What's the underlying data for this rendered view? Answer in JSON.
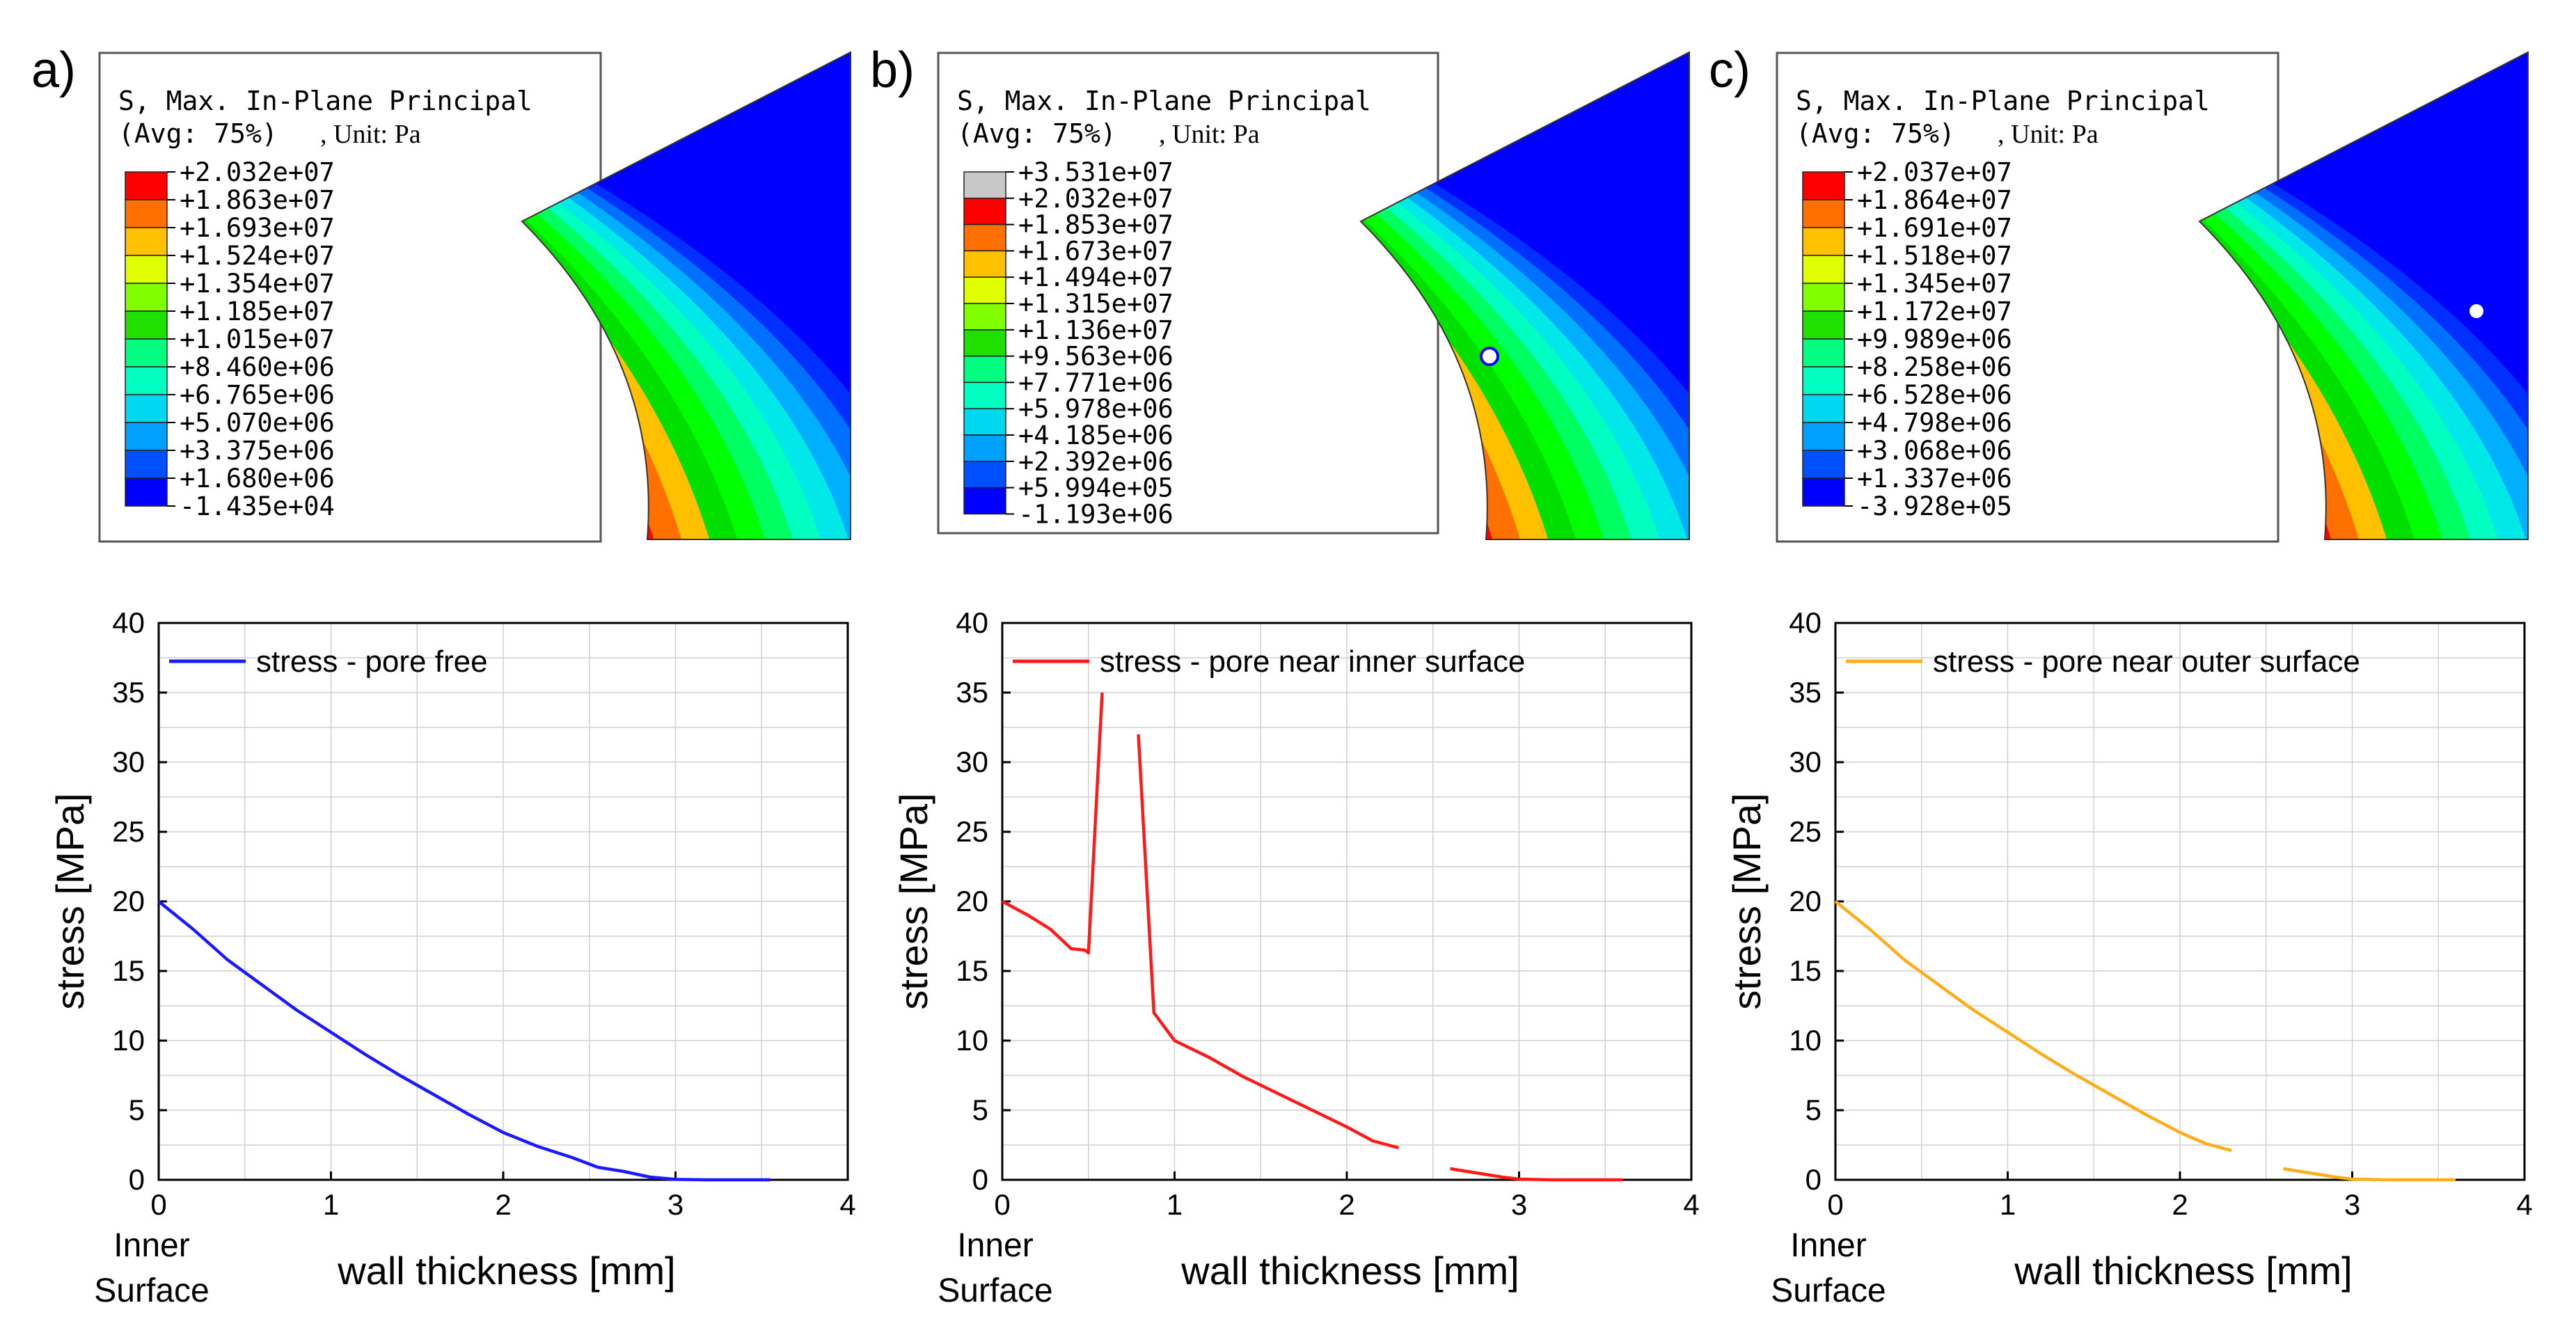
{
  "colors": {
    "legend_scale": [
      "#0000ff",
      "#0050ff",
      "#00a0ff",
      "#00d8f0",
      "#00ffc0",
      "#00ff80",
      "#00ff30",
      "#20e000",
      "#80ff00",
      "#e0ff00",
      "#ffc000",
      "#ff7000",
      "#ff0000"
    ],
    "series": [
      "#1a1aff",
      "#ff1a1a",
      "#ffae1a"
    ],
    "grid": "#d0d0d0"
  },
  "panels": [
    {
      "letter": "a)",
      "legend": {
        "title_line1": "S, Max. In-Plane Principal",
        "title_line2": "(Avg: 75%)",
        "unit": ", Unit: Pa",
        "values": [
          "+2.032e+07",
          "+1.863e+07",
          "+1.693e+07",
          "+1.524e+07",
          "+1.354e+07",
          "+1.185e+07",
          "+1.015e+07",
          "+8.460e+06",
          "+6.765e+06",
          "+5.070e+06",
          "+3.375e+06",
          "+1.680e+06",
          "-1.435e+04"
        ],
        "has_overflow": false
      },
      "pore": "none"
    },
    {
      "letter": "b)",
      "legend": {
        "title_line1": "S, Max. In-Plane Principal",
        "title_line2": "(Avg: 75%)",
        "unit": ", Unit: Pa",
        "values": [
          "+3.531e+07",
          "+2.032e+07",
          "+1.853e+07",
          "+1.673e+07",
          "+1.494e+07",
          "+1.315e+07",
          "+1.136e+07",
          "+9.563e+06",
          "+7.771e+06",
          "+5.978e+06",
          "+4.185e+06",
          "+2.392e+06",
          "+5.994e+05",
          "-1.193e+06"
        ],
        "has_overflow": true
      },
      "pore": "inner"
    },
    {
      "letter": "c)",
      "legend": {
        "title_line1": "S, Max. In-Plane Principal",
        "title_line2": "(Avg: 75%)",
        "unit": ", Unit: Pa",
        "values": [
          "+2.037e+07",
          "+1.864e+07",
          "+1.691e+07",
          "+1.518e+07",
          "+1.345e+07",
          "+1.172e+07",
          "+9.989e+06",
          "+8.258e+06",
          "+6.528e+06",
          "+4.798e+06",
          "+3.068e+06",
          "+1.337e+06",
          "-3.928e+05"
        ],
        "has_overflow": false
      },
      "pore": "outer"
    }
  ],
  "chart_data": [
    {
      "type": "line",
      "xlabel": "wall thickness [mm]",
      "ylabel": "stress [MPa]",
      "x_annotation": [
        "Inner",
        "Surface"
      ],
      "xlim": [
        0,
        4
      ],
      "ylim": [
        0,
        40
      ],
      "xticks": [
        "0",
        "1",
        "2",
        "3",
        "4"
      ],
      "yticks": [
        "0",
        "5",
        "10",
        "15",
        "20",
        "25",
        "30",
        "35",
        "40"
      ],
      "legend": "top-left",
      "series": [
        {
          "name": "stress - pore free",
          "color_index": 0,
          "segments": [
            [
              [
                0,
                20
              ],
              [
                0.2,
                18
              ],
              [
                0.4,
                15.8
              ],
              [
                0.6,
                14
              ],
              [
                0.8,
                12.2
              ],
              [
                1.0,
                10.6
              ],
              [
                1.2,
                9
              ],
              [
                1.4,
                7.5
              ],
              [
                1.6,
                6.1
              ],
              [
                1.8,
                4.7
              ],
              [
                2.0,
                3.4
              ],
              [
                2.2,
                2.4
              ],
              [
                2.4,
                1.6
              ],
              [
                2.55,
                0.9
              ],
              [
                2.7,
                0.6
              ],
              [
                2.85,
                0.2
              ],
              [
                3.0,
                0.03
              ],
              [
                3.2,
                0
              ],
              [
                3.55,
                0
              ]
            ]
          ]
        }
      ]
    },
    {
      "type": "line",
      "xlabel": "wall thickness [mm]",
      "ylabel": "stress [MPa]",
      "x_annotation": [
        "Inner",
        "Surface"
      ],
      "xlim": [
        0,
        4
      ],
      "ylim": [
        0,
        40
      ],
      "xticks": [
        "0",
        "1",
        "2",
        "3",
        "4"
      ],
      "yticks": [
        "0",
        "5",
        "10",
        "15",
        "20",
        "25",
        "30",
        "35",
        "40"
      ],
      "legend": "top-left",
      "series": [
        {
          "name": "stress - pore near inner surface",
          "color_index": 1,
          "segments": [
            [
              [
                0,
                20
              ],
              [
                0.15,
                19
              ],
              [
                0.28,
                18
              ],
              [
                0.4,
                16.6
              ],
              [
                0.48,
                16.5
              ],
              [
                0.5,
                16.3
              ],
              [
                0.58,
                35
              ]
            ],
            [
              [
                0.79,
                32
              ],
              [
                0.88,
                12
              ],
              [
                1.0,
                10
              ],
              [
                1.2,
                8.8
              ],
              [
                1.4,
                7.4
              ],
              [
                1.6,
                6.2
              ],
              [
                1.8,
                5
              ],
              [
                2.0,
                3.8
              ],
              [
                2.15,
                2.8
              ],
              [
                2.3,
                2.3
              ]
            ],
            [
              [
                2.6,
                0.8
              ],
              [
                2.75,
                0.5
              ],
              [
                2.9,
                0.2
              ],
              [
                3.0,
                0.05
              ],
              [
                3.2,
                0
              ],
              [
                3.6,
                0
              ]
            ]
          ]
        }
      ]
    },
    {
      "type": "line",
      "xlabel": "wall thickness [mm]",
      "ylabel": "stress [MPa]",
      "x_annotation": [
        "Inner",
        "Surface"
      ],
      "xlim": [
        0,
        4
      ],
      "ylim": [
        0,
        40
      ],
      "xticks": [
        "0",
        "1",
        "2",
        "3",
        "4"
      ],
      "yticks": [
        "0",
        "5",
        "10",
        "15",
        "20",
        "25",
        "30",
        "35",
        "40"
      ],
      "legend": "top-left",
      "series": [
        {
          "name": "stress - pore near outer surface",
          "color_index": 2,
          "segments": [
            [
              [
                0,
                20
              ],
              [
                0.2,
                18
              ],
              [
                0.4,
                15.8
              ],
              [
                0.6,
                14
              ],
              [
                0.8,
                12.2
              ],
              [
                1.0,
                10.6
              ],
              [
                1.2,
                9
              ],
              [
                1.4,
                7.5
              ],
              [
                1.6,
                6.1
              ],
              [
                1.8,
                4.7
              ],
              [
                2.0,
                3.4
              ],
              [
                2.15,
                2.6
              ],
              [
                2.3,
                2.1
              ]
            ],
            [
              [
                2.6,
                0.8
              ],
              [
                2.75,
                0.5
              ],
              [
                2.9,
                0.2
              ],
              [
                3.0,
                0.05
              ],
              [
                3.2,
                0
              ],
              [
                3.6,
                0
              ]
            ]
          ]
        }
      ]
    }
  ]
}
